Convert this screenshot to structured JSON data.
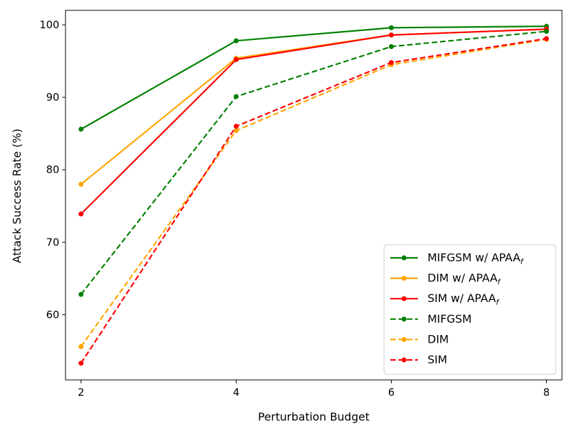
{
  "chart_data": {
    "type": "line",
    "title": "",
    "xlabel": "Perturbation Budget",
    "ylabel": "Attack Success Rate (%)",
    "x": [
      2,
      4,
      6,
      8
    ],
    "x_ticks": [
      2,
      4,
      6,
      8
    ],
    "y_ticks": [
      60,
      70,
      80,
      90,
      100
    ],
    "xlim": [
      1.8,
      8.2
    ],
    "ylim": [
      51,
      102
    ],
    "legend_position": "lower-right",
    "series": [
      {
        "name": "MIFGSM w/ APAA",
        "subscript": "f",
        "color": "#008000",
        "dash": "solid",
        "values": [
          85.6,
          97.8,
          99.6,
          99.8
        ]
      },
      {
        "name": "DIM w/ APAA",
        "subscript": "f",
        "color": "#ffa500",
        "dash": "solid",
        "values": [
          78.0,
          95.4,
          98.6,
          99.4
        ]
      },
      {
        "name": "SIM w/ APAA",
        "subscript": "f",
        "color": "#ff0000",
        "dash": "solid",
        "values": [
          73.9,
          95.2,
          98.6,
          99.4
        ]
      },
      {
        "name": "MIFGSM",
        "subscript": "",
        "color": "#008000",
        "dash": "dashed",
        "values": [
          62.8,
          90.1,
          97.0,
          99.1
        ]
      },
      {
        "name": "DIM",
        "subscript": "",
        "color": "#ffa500",
        "dash": "dashed",
        "values": [
          55.6,
          85.4,
          94.5,
          98.0
        ]
      },
      {
        "name": "SIM",
        "subscript": "",
        "color": "#ff0000",
        "dash": "dashed",
        "values": [
          53.3,
          86.0,
          94.8,
          98.1
        ]
      }
    ]
  }
}
